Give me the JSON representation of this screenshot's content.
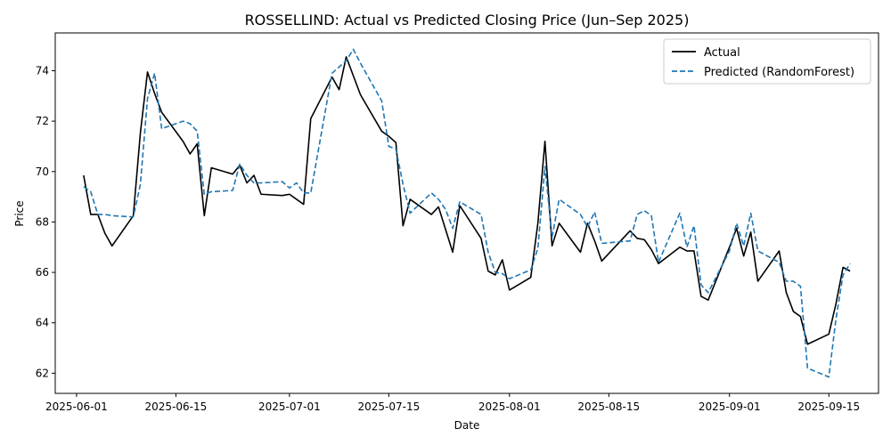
{
  "chart_data": {
    "type": "line",
    "title": "ROSSELLIND: Actual vs Predicted Closing Price (Jun–Sep 2025)",
    "xlabel": "Date",
    "ylabel": "Price",
    "x_tick_labels": [
      "2025-06-01",
      "2025-06-15",
      "2025-07-01",
      "2025-07-15",
      "2025-08-01",
      "2025-08-15",
      "2025-09-01",
      "2025-09-15"
    ],
    "y_ticks": [
      62,
      64,
      66,
      68,
      70,
      72,
      74
    ],
    "xlim": [
      "2025-05-29",
      "2025-09-22"
    ],
    "ylim": [
      61.2,
      75.5
    ],
    "grid": false,
    "legend_position": "top-right",
    "x": [
      "2025-06-02",
      "2025-06-03",
      "2025-06-04",
      "2025-06-05",
      "2025-06-06",
      "2025-06-09",
      "2025-06-10",
      "2025-06-11",
      "2025-06-12",
      "2025-06-13",
      "2025-06-16",
      "2025-06-17",
      "2025-06-18",
      "2025-06-19",
      "2025-06-20",
      "2025-06-23",
      "2025-06-24",
      "2025-06-25",
      "2025-06-26",
      "2025-06-27",
      "2025-06-30",
      "2025-07-01",
      "2025-07-02",
      "2025-07-03",
      "2025-07-04",
      "2025-07-07",
      "2025-07-08",
      "2025-07-09",
      "2025-07-10",
      "2025-07-11",
      "2025-07-14",
      "2025-07-15",
      "2025-07-16",
      "2025-07-17",
      "2025-07-18",
      "2025-07-21",
      "2025-07-22",
      "2025-07-23",
      "2025-07-24",
      "2025-07-25",
      "2025-07-28",
      "2025-07-29",
      "2025-07-30",
      "2025-07-31",
      "2025-08-01",
      "2025-08-04",
      "2025-08-05",
      "2025-08-06",
      "2025-08-07",
      "2025-08-08",
      "2025-08-11",
      "2025-08-12",
      "2025-08-13",
      "2025-08-14",
      "2025-08-18",
      "2025-08-19",
      "2025-08-20",
      "2025-08-21",
      "2025-08-22",
      "2025-08-25",
      "2025-08-26",
      "2025-08-27",
      "2025-08-28",
      "2025-08-29",
      "2025-09-01",
      "2025-09-02",
      "2025-09-03",
      "2025-09-04",
      "2025-09-05",
      "2025-09-08",
      "2025-09-09",
      "2025-09-10",
      "2025-09-11",
      "2025-09-12",
      "2025-09-15",
      "2025-09-16",
      "2025-09-17",
      "2025-09-18"
    ],
    "series": [
      {
        "name": "Actual",
        "color": "#000000",
        "style": "solid",
        "values": [
          69.85,
          68.3,
          68.3,
          67.55,
          67.05,
          68.25,
          71.55,
          73.95,
          73.1,
          72.35,
          71.2,
          70.7,
          71.1,
          68.25,
          70.15,
          69.9,
          70.25,
          69.55,
          69.85,
          69.1,
          69.05,
          69.1,
          68.9,
          68.7,
          72.1,
          73.75,
          73.25,
          74.55,
          73.8,
          73.05,
          71.6,
          71.4,
          71.15,
          67.85,
          68.9,
          68.3,
          68.6,
          67.7,
          66.8,
          68.65,
          67.35,
          66.05,
          65.9,
          66.5,
          65.3,
          65.8,
          67.95,
          71.2,
          67.05,
          67.95,
          66.8,
          67.95,
          67.25,
          66.45,
          67.65,
          67.35,
          67.3,
          66.9,
          66.35,
          67.0,
          66.85,
          66.85,
          65.05,
          64.9,
          67.0,
          67.75,
          66.65,
          67.6,
          65.65,
          66.85,
          65.2,
          64.45,
          64.25,
          63.15,
          63.55,
          64.75,
          66.2,
          66.05
        ]
      },
      {
        "name": "Predicted (RandomForest)",
        "color": "#1f77b4",
        "style": "dashed",
        "values": [
          69.4,
          69.2,
          68.3,
          68.3,
          68.25,
          68.2,
          69.5,
          72.9,
          73.9,
          71.7,
          72.0,
          71.9,
          71.6,
          69.1,
          69.2,
          69.25,
          70.3,
          69.85,
          69.55,
          69.55,
          69.6,
          69.35,
          69.55,
          69.15,
          69.15,
          73.9,
          74.15,
          74.4,
          74.85,
          74.3,
          72.8,
          71.0,
          70.9,
          69.5,
          68.35,
          69.15,
          68.9,
          68.5,
          67.75,
          68.8,
          68.3,
          66.8,
          66.0,
          65.95,
          65.75,
          66.1,
          66.95,
          70.2,
          67.4,
          68.9,
          68.3,
          67.8,
          68.4,
          67.15,
          67.25,
          68.3,
          68.45,
          68.25,
          66.4,
          68.35,
          67.0,
          67.85,
          65.5,
          65.2,
          66.85,
          67.95,
          67.05,
          68.35,
          66.85,
          66.4,
          65.65,
          65.65,
          65.45,
          62.2,
          61.85,
          64.15,
          65.9,
          66.35
        ]
      }
    ]
  }
}
